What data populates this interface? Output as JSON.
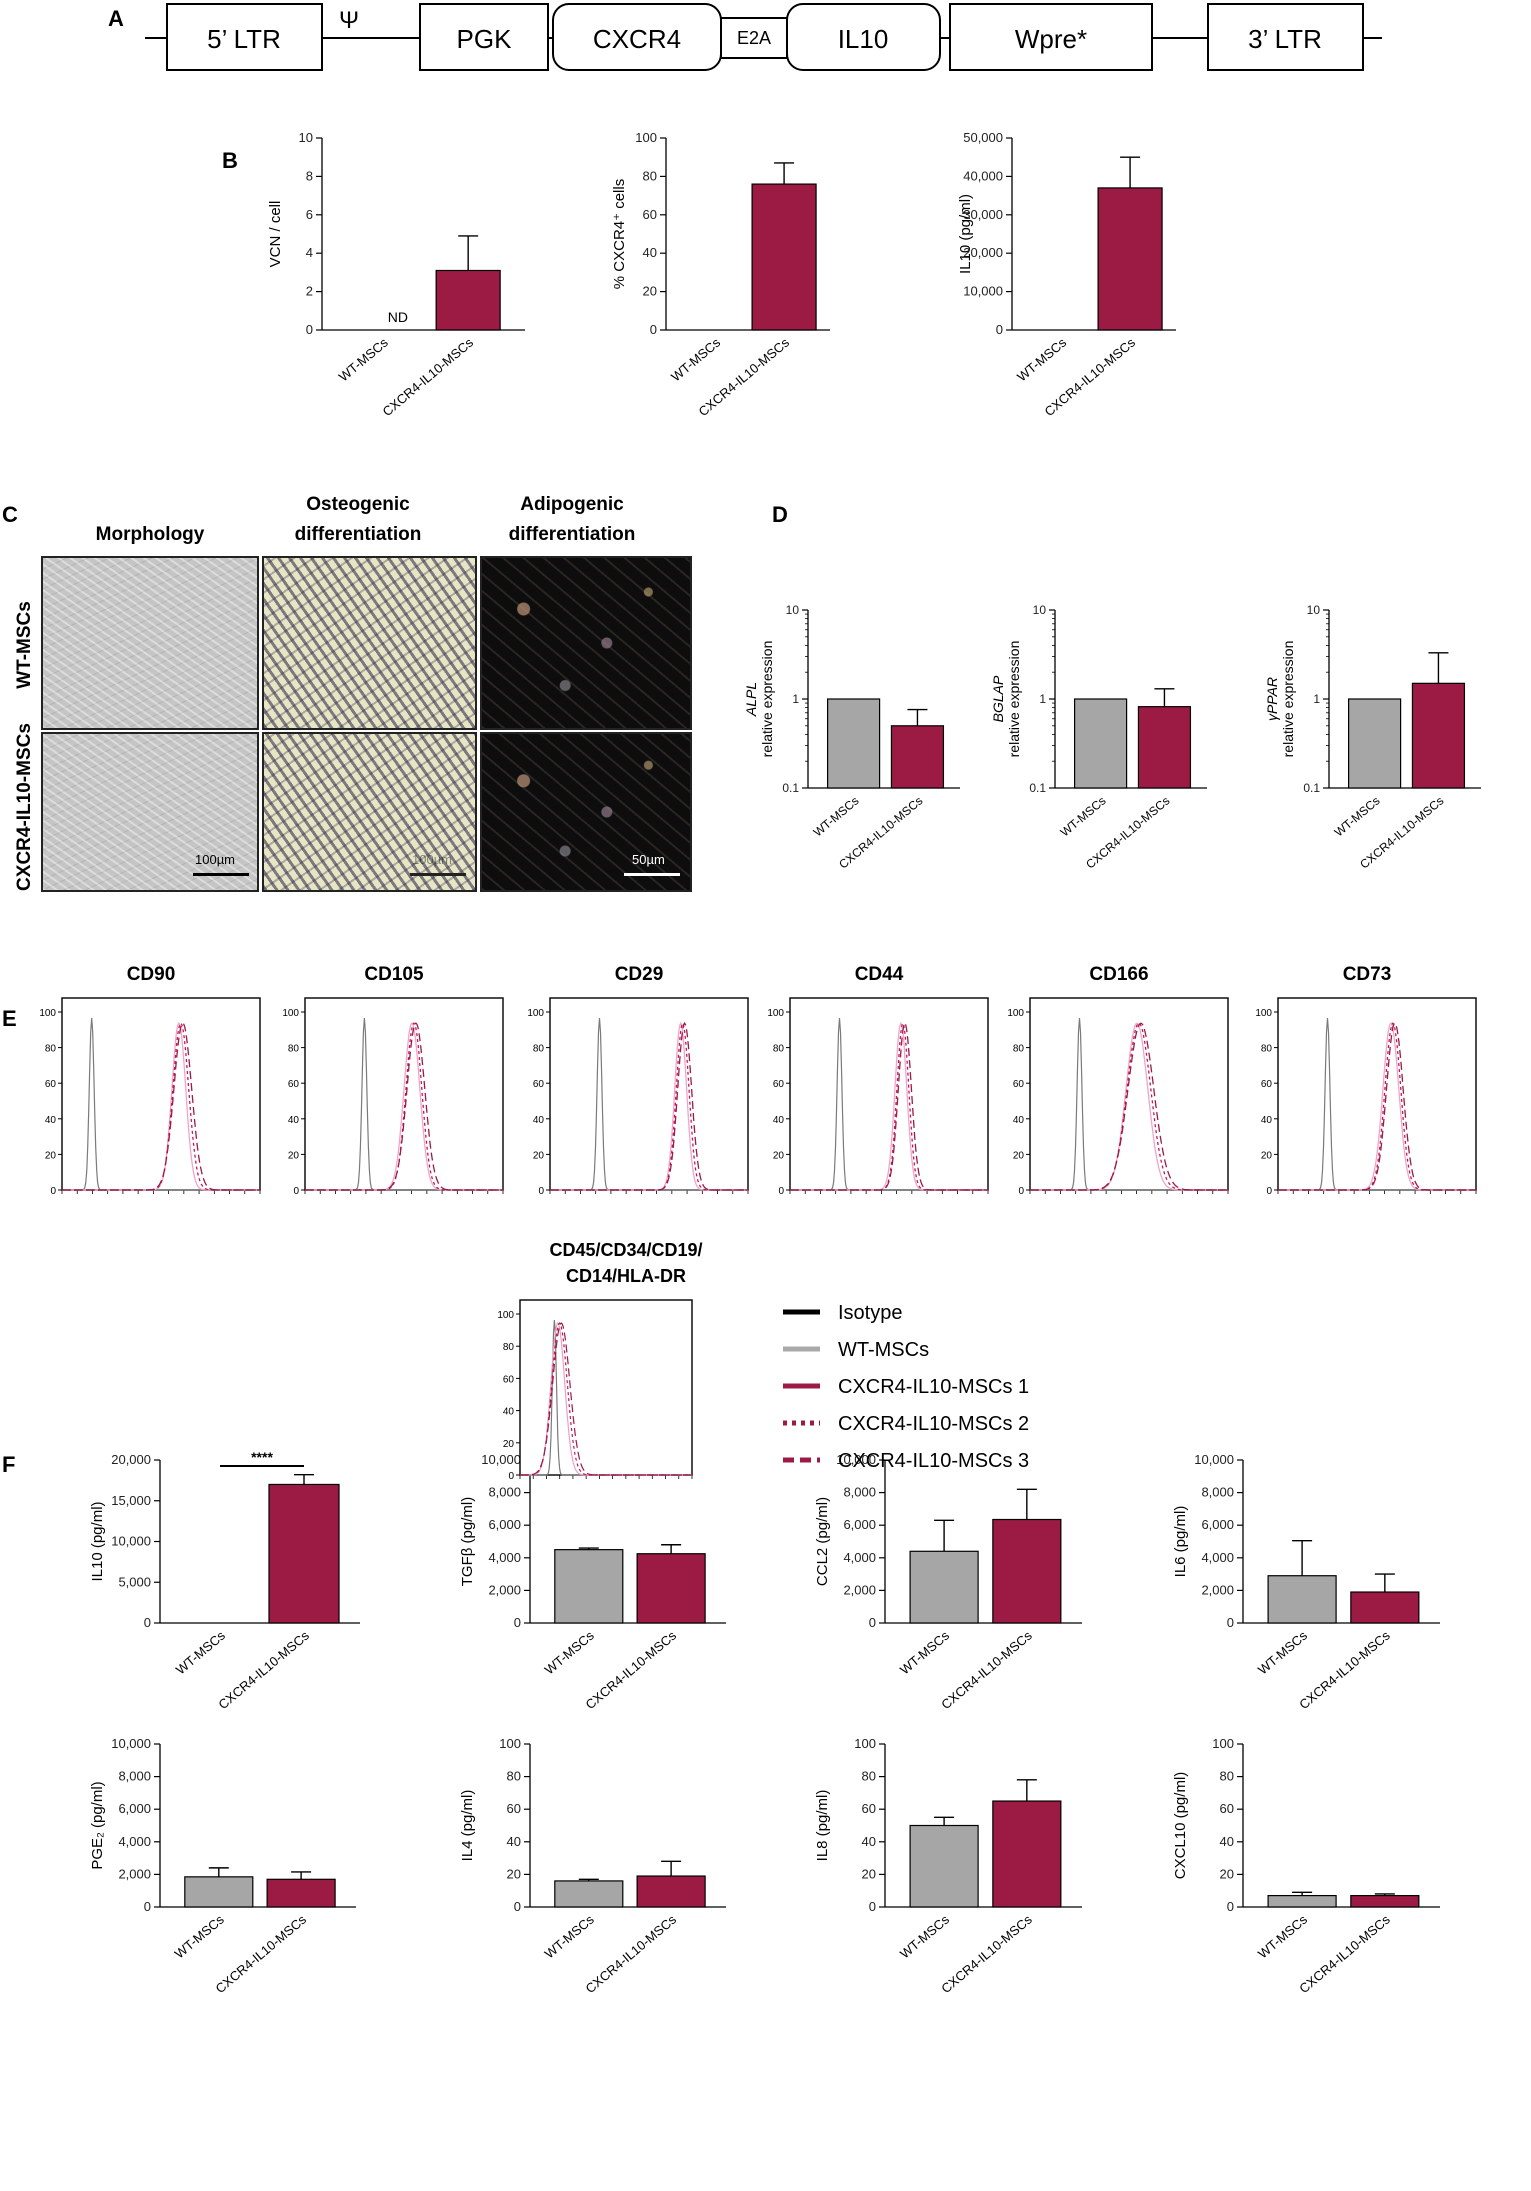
{
  "panel_labels": {
    "a": "A",
    "b": "B",
    "c": "C",
    "d": "D",
    "e": "E",
    "f": "F"
  },
  "construct": {
    "elements": [
      "5’ LTR",
      "Ψ",
      "PGK",
      "CXCR4",
      "E2A",
      "IL10",
      "Wpre*",
      "3’ LTR"
    ]
  },
  "panel_c": {
    "col_headers": [
      {
        "line1": "Morphology",
        "line2": ""
      },
      {
        "line1": "Osteogenic",
        "line2": "differentiation"
      },
      {
        "line1": "Adipogenic",
        "line2": "differentiation"
      }
    ],
    "row_labels": [
      "WT-MSCs",
      "CXCR4-IL10-MSCs"
    ],
    "scale_bars": [
      "100µm",
      "100µm",
      "50µm"
    ]
  },
  "panel_e": {
    "titles": [
      "CD90",
      "CD105",
      "CD29",
      "CD44",
      "CD166",
      "CD73"
    ],
    "neg_title_line1": "CD45/CD34/CD19/",
    "neg_title_line2": "CD14/HLA-DR",
    "yticks": [
      "0",
      "20",
      "40",
      "60",
      "80",
      "100"
    ]
  },
  "legend": {
    "items": [
      {
        "label": "Isotype",
        "color": "#000000",
        "style": "solid"
      },
      {
        "label": "WT-MSCs",
        "color": "#a9a9a9",
        "style": "solid"
      },
      {
        "label": "CXCR4-IL10-MSCs 1",
        "color": "#9b1b45",
        "style": "solid"
      },
      {
        "label": "CXCR4-IL10-MSCs 2",
        "color": "#9b1b45",
        "style": "dotted"
      },
      {
        "label": "CXCR4-IL10-MSCs 3",
        "color": "#9b1b45",
        "style": "dashed"
      }
    ]
  },
  "colors": {
    "wt": "#a6a6a6",
    "cxcr4": "#9b1b45",
    "axis": "#000000"
  },
  "significance": "****",
  "not_detected_label": "ND",
  "chart_data": [
    {
      "id": "B1",
      "type": "bar",
      "categories": [
        "WT-MSCs",
        "CXCR4-IL10-MSCs"
      ],
      "values": [
        0,
        3.1
      ],
      "errors": [
        0,
        1.8
      ],
      "ylabel": "VCN / cell",
      "ylim": [
        0,
        10
      ],
      "yticks": [
        0,
        2,
        4,
        6,
        8,
        10
      ],
      "yticklabels": [
        "0",
        "2",
        "4",
        "6",
        "8",
        "10"
      ]
    },
    {
      "id": "B2",
      "type": "bar",
      "categories": [
        "WT-MSCs",
        "CXCR4-IL10-MSCs"
      ],
      "values": [
        0,
        76
      ],
      "errors": [
        0,
        11
      ],
      "ylabel": "% CXCR4⁺ cells",
      "ylim": [
        0,
        100
      ],
      "yticks": [
        0,
        20,
        40,
        60,
        80,
        100
      ],
      "yticklabels": [
        "0",
        "20",
        "40",
        "60",
        "80",
        "100"
      ]
    },
    {
      "id": "B3",
      "type": "bar",
      "categories": [
        "WT-MSCs",
        "CXCR4-IL10-MSCs"
      ],
      "values": [
        0,
        37000
      ],
      "errors": [
        0,
        8000
      ],
      "ylabel": "IL10 (pg/ml)",
      "ylim": [
        0,
        50000
      ],
      "yticks": [
        0,
        10000,
        20000,
        30000,
        40000,
        50000
      ],
      "yticklabels": [
        "0",
        "10,000",
        "20,000",
        "30,000",
        "40,000",
        "50,000"
      ]
    },
    {
      "id": "D1",
      "type": "bar",
      "scale": "log",
      "categories": [
        "WT-MSCs",
        "CXCR4-IL10-MSCs"
      ],
      "values": [
        1,
        0.5
      ],
      "errors": [
        0,
        0.26
      ],
      "ylabel_gene": "ALPL",
      "ylabel": "relative expression",
      "ylim": [
        0.1,
        10
      ],
      "yticks": [
        0.1,
        1,
        10
      ],
      "yticklabels": [
        "0.1",
        "1",
        "10"
      ]
    },
    {
      "id": "D2",
      "type": "bar",
      "scale": "log",
      "categories": [
        "WT-MSCs",
        "CXCR4-IL10-MSCs"
      ],
      "values": [
        1,
        0.82
      ],
      "errors": [
        0,
        0.48
      ],
      "ylabel_gene": "BGLAP",
      "ylabel": "relative expression",
      "ylim": [
        0.1,
        10
      ],
      "yticks": [
        0.1,
        1,
        10
      ],
      "yticklabels": [
        "0.1",
        "1",
        "10"
      ]
    },
    {
      "id": "D3",
      "type": "bar",
      "scale": "log",
      "categories": [
        "WT-MSCs",
        "CXCR4-IL10-MSCs"
      ],
      "values": [
        1,
        1.5
      ],
      "errors": [
        0,
        1.8
      ],
      "ylabel_gene": "γPPAR",
      "ylabel": "relative expression",
      "ylim": [
        0.1,
        10
      ],
      "yticks": [
        0.1,
        1,
        10
      ],
      "yticklabels": [
        "0.1",
        "1",
        "10"
      ]
    },
    {
      "id": "F1",
      "type": "bar",
      "categories": [
        "WT-MSCs",
        "CXCR4-IL10-MSCs"
      ],
      "values": [
        0,
        17000
      ],
      "errors": [
        0,
        1200
      ],
      "ylabel": "IL10 (pg/ml)",
      "ylim": [
        0,
        20000
      ],
      "yticks": [
        0,
        5000,
        10000,
        15000,
        20000
      ],
      "yticklabels": [
        "0",
        "5,000",
        "10,000",
        "15,000",
        "20,000"
      ],
      "significance": "****"
    },
    {
      "id": "F2",
      "type": "bar",
      "categories": [
        "WT-MSCs",
        "CXCR4-IL10-MSCs"
      ],
      "values": [
        4500,
        4250
      ],
      "errors": [
        100,
        550
      ],
      "ylabel": "TGFβ (pg/ml)",
      "ylim": [
        0,
        10000
      ],
      "yticks": [
        0,
        2000,
        4000,
        6000,
        8000,
        10000
      ],
      "yticklabels": [
        "0",
        "2,000",
        "4,000",
        "6,000",
        "8,000",
        "10,000"
      ]
    },
    {
      "id": "F3",
      "type": "bar",
      "categories": [
        "WT-MSCs",
        "CXCR4-IL10-MSCs"
      ],
      "values": [
        4400,
        6350
      ],
      "errors": [
        1900,
        1850
      ],
      "ylabel": "CCL2 (pg/ml)",
      "ylim": [
        0,
        10000
      ],
      "yticks": [
        0,
        2000,
        4000,
        6000,
        8000,
        10000
      ],
      "yticklabels": [
        "0",
        "2,000",
        "4,000",
        "6,000",
        "8,000",
        "10,000"
      ]
    },
    {
      "id": "F4",
      "type": "bar",
      "categories": [
        "WT-MSCs",
        "CXCR4-IL10-MSCs"
      ],
      "values": [
        2900,
        1900
      ],
      "errors": [
        2150,
        1100
      ],
      "ylabel": "IL6 (pg/ml)",
      "ylim": [
        0,
        10000
      ],
      "yticks": [
        0,
        2000,
        4000,
        6000,
        8000,
        10000
      ],
      "yticklabels": [
        "0",
        "2,000",
        "4,000",
        "6,000",
        "8,000",
        "10,000"
      ]
    },
    {
      "id": "F5",
      "type": "bar",
      "categories": [
        "WT-MSCs",
        "CXCR4-IL10-MSCs"
      ],
      "values": [
        1850,
        1700
      ],
      "errors": [
        550,
        450
      ],
      "ylabel": "PGE₂ (pg/ml)",
      "ylim": [
        0,
        10000
      ],
      "yticks": [
        0,
        2000,
        4000,
        6000,
        8000,
        10000
      ],
      "yticklabels": [
        "0",
        "2,000",
        "4,000",
        "6,000",
        "8,000",
        "10,000"
      ]
    },
    {
      "id": "F6",
      "type": "bar",
      "categories": [
        "WT-MSCs",
        "CXCR4-IL10-MSCs"
      ],
      "values": [
        16,
        19
      ],
      "errors": [
        1,
        9
      ],
      "ylabel": "IL4 (pg/ml)",
      "ylim": [
        0,
        100
      ],
      "yticks": [
        0,
        20,
        40,
        60,
        80,
        100
      ],
      "yticklabels": [
        "0",
        "20",
        "40",
        "60",
        "80",
        "100"
      ]
    },
    {
      "id": "F7",
      "type": "bar",
      "categories": [
        "WT-MSCs",
        "CXCR4-IL10-MSCs"
      ],
      "values": [
        50,
        65
      ],
      "errors": [
        5,
        13
      ],
      "ylabel": "IL8 (pg/ml)",
      "ylim": [
        0,
        100
      ],
      "yticks": [
        0,
        20,
        40,
        60,
        80,
        100
      ],
      "yticklabels": [
        "0",
        "20",
        "40",
        "60",
        "80",
        "100"
      ]
    },
    {
      "id": "F8",
      "type": "bar",
      "categories": [
        "WT-MSCs",
        "CXCR4-IL10-MSCs"
      ],
      "values": [
        7,
        7
      ],
      "errors": [
        2,
        1
      ],
      "ylabel": "CXCL10 (pg/ml)",
      "ylim": [
        0,
        100
      ],
      "yticks": [
        0,
        20,
        40,
        60,
        80,
        100
      ],
      "yticklabels": [
        "0",
        "20",
        "40",
        "60",
        "80",
        "100"
      ]
    },
    {
      "id": "E_hist",
      "type": "histogram",
      "markers": [
        "CD90",
        "CD105",
        "CD29",
        "CD44",
        "CD166",
        "CD73",
        "CD45/CD34/CD19/CD14/HLA-DR"
      ],
      "ylim": [
        0,
        100
      ],
      "note": "isotype peak near left; MSC samples positive peaks on right"
    }
  ]
}
